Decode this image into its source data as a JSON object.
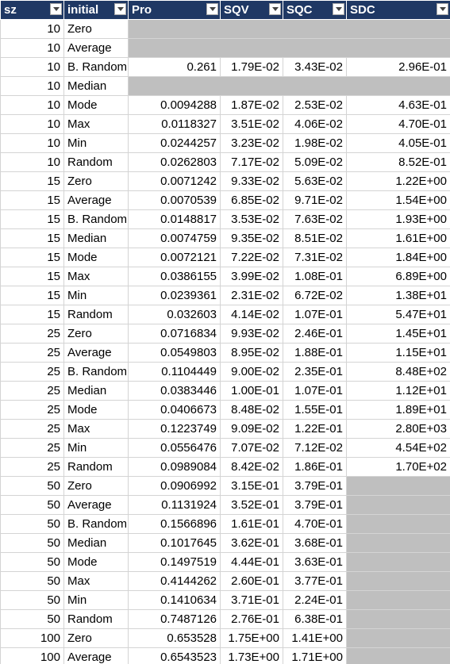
{
  "sheet": {
    "headers": [
      "sz",
      "initial",
      "Pro",
      "SQV",
      "SQC",
      "SDC"
    ],
    "rows": [
      {
        "sz": "10",
        "initial": "Zero",
        "fill_from": 2
      },
      {
        "sz": "10",
        "initial": "Average",
        "fill_from": 2
      },
      {
        "sz": "10",
        "initial": "B. Random",
        "pro": "0.261",
        "sqv": "1.79E-02",
        "sqc": "3.43E-02",
        "sdc": "2.96E-01"
      },
      {
        "sz": "10",
        "initial": "Median",
        "fill_from": 2
      },
      {
        "sz": "10",
        "initial": "Mode",
        "pro": "0.0094288",
        "sqv": "1.87E-02",
        "sqc": "2.53E-02",
        "sdc": "4.63E-01"
      },
      {
        "sz": "10",
        "initial": "Max",
        "pro": "0.0118327",
        "sqv": "3.51E-02",
        "sqc": "4.06E-02",
        "sdc": "4.70E-01"
      },
      {
        "sz": "10",
        "initial": "Min",
        "pro": "0.0244257",
        "sqv": "3.23E-02",
        "sqc": "1.98E-02",
        "sdc": "4.05E-01"
      },
      {
        "sz": "10",
        "initial": "Random",
        "pro": "0.0262803",
        "sqv": "7.17E-02",
        "sqc": "5.09E-02",
        "sdc": "8.52E-01"
      },
      {
        "sz": "15",
        "initial": "Zero",
        "pro": "0.0071242",
        "sqv": "9.33E-02",
        "sqc": "5.63E-02",
        "sdc": "1.22E+00"
      },
      {
        "sz": "15",
        "initial": "Average",
        "pro": "0.0070539",
        "sqv": "6.85E-02",
        "sqc": "9.71E-02",
        "sdc": "1.54E+00"
      },
      {
        "sz": "15",
        "initial": "B. Random",
        "pro": "0.0148817",
        "sqv": "3.53E-02",
        "sqc": "7.63E-02",
        "sdc": "1.93E+00"
      },
      {
        "sz": "15",
        "initial": "Median",
        "pro": "0.0074759",
        "sqv": "9.35E-02",
        "sqc": "8.51E-02",
        "sdc": "1.61E+00"
      },
      {
        "sz": "15",
        "initial": "Mode",
        "pro": "0.0072121",
        "sqv": "7.22E-02",
        "sqc": "7.31E-02",
        "sdc": "1.84E+00"
      },
      {
        "sz": "15",
        "initial": "Max",
        "pro": "0.0386155",
        "sqv": "3.99E-02",
        "sqc": "1.08E-01",
        "sdc": "6.89E+00"
      },
      {
        "sz": "15",
        "initial": "Min",
        "pro": "0.0239361",
        "sqv": "2.31E-02",
        "sqc": "6.72E-02",
        "sdc": "1.38E+01"
      },
      {
        "sz": "15",
        "initial": "Random",
        "pro": "0.032603",
        "sqv": "4.14E-02",
        "sqc": "1.07E-01",
        "sdc": "5.47E+01"
      },
      {
        "sz": "25",
        "initial": "Zero",
        "pro": "0.0716834",
        "sqv": "9.93E-02",
        "sqc": "2.46E-01",
        "sdc": "1.45E+01"
      },
      {
        "sz": "25",
        "initial": "Average",
        "pro": "0.0549803",
        "sqv": "8.95E-02",
        "sqc": "1.88E-01",
        "sdc": "1.15E+01"
      },
      {
        "sz": "25",
        "initial": "B. Random",
        "pro": "0.1104449",
        "sqv": "9.00E-02",
        "sqc": "2.35E-01",
        "sdc": "8.48E+02"
      },
      {
        "sz": "25",
        "initial": "Median",
        "pro": "0.0383446",
        "sqv": "1.00E-01",
        "sqc": "1.07E-01",
        "sdc": "1.12E+01"
      },
      {
        "sz": "25",
        "initial": "Mode",
        "pro": "0.0406673",
        "sqv": "8.48E-02",
        "sqc": "1.55E-01",
        "sdc": "1.89E+01"
      },
      {
        "sz": "25",
        "initial": "Max",
        "pro": "0.1223749",
        "sqv": "9.09E-02",
        "sqc": "1.22E-01",
        "sdc": "2.80E+03"
      },
      {
        "sz": "25",
        "initial": "Min",
        "pro": "0.0556476",
        "sqv": "7.07E-02",
        "sqc": "7.12E-02",
        "sdc": "4.54E+02"
      },
      {
        "sz": "25",
        "initial": "Random",
        "pro": "0.0989084",
        "sqv": "8.42E-02",
        "sqc": "1.86E-01",
        "sdc": "1.70E+02"
      },
      {
        "sz": "50",
        "initial": "Zero",
        "pro": "0.0906992",
        "sqv": "3.15E-01",
        "sqc": "3.79E-01",
        "fill_from": 5
      },
      {
        "sz": "50",
        "initial": "Average",
        "pro": "0.1131924",
        "sqv": "3.52E-01",
        "sqc": "3.79E-01",
        "fill_from": 5
      },
      {
        "sz": "50",
        "initial": "B. Random",
        "pro": "0.1566896",
        "sqv": "1.61E-01",
        "sqc": "4.70E-01",
        "fill_from": 5
      },
      {
        "sz": "50",
        "initial": "Median",
        "pro": "0.1017645",
        "sqv": "3.62E-01",
        "sqc": "3.68E-01",
        "fill_from": 5
      },
      {
        "sz": "50",
        "initial": "Mode",
        "pro": "0.1497519",
        "sqv": "4.44E-01",
        "sqc": "3.63E-01",
        "fill_from": 5
      },
      {
        "sz": "50",
        "initial": "Max",
        "pro": "0.4144262",
        "sqv": "2.60E-01",
        "sqc": "3.77E-01",
        "fill_from": 5
      },
      {
        "sz": "50",
        "initial": "Min",
        "pro": "0.1410634",
        "sqv": "3.71E-01",
        "sqc": "2.24E-01",
        "fill_from": 5
      },
      {
        "sz": "50",
        "initial": "Random",
        "pro": "0.7487126",
        "sqv": "2.76E-01",
        "sqc": "6.38E-01",
        "fill_from": 5
      },
      {
        "sz": "100",
        "initial": "Zero",
        "pro": "0.653528",
        "sqv": "1.75E+00",
        "sqc": "1.41E+00",
        "fill_from": 5
      },
      {
        "sz": "100",
        "initial": "Average",
        "pro": "0.6543523",
        "sqv": "1.73E+00",
        "sqc": "1.71E+00",
        "fill_from": 5
      }
    ]
  },
  "colors": {
    "header_bg": "#1f3864",
    "header_text": "#ffffff",
    "empty_fill": "#bfbfbf",
    "grid": "#d4d4d4"
  },
  "icons": {
    "filter_button": "chevron-down-icon"
  }
}
